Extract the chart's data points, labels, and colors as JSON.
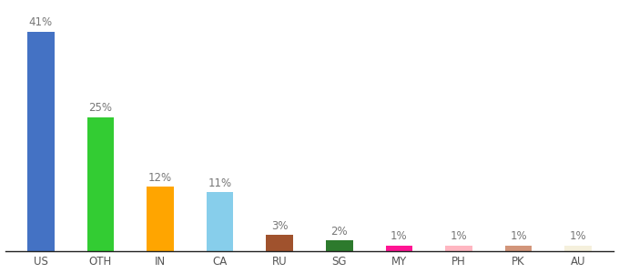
{
  "categories": [
    "US",
    "OTH",
    "IN",
    "CA",
    "RU",
    "SG",
    "MY",
    "PH",
    "PK",
    "AU"
  ],
  "values": [
    41,
    25,
    12,
    11,
    3,
    2,
    1,
    1,
    1,
    1
  ],
  "bar_colors": [
    "#4472C4",
    "#33CC33",
    "#FFA500",
    "#87CEEB",
    "#A0522D",
    "#2D7A2D",
    "#FF1493",
    "#FFB6C1",
    "#D2957A",
    "#F5F0DC"
  ],
  "labels": [
    "41%",
    "25%",
    "12%",
    "11%",
    "3%",
    "2%",
    "1%",
    "1%",
    "1%",
    "1%"
  ],
  "background_color": "#ffffff",
  "ylim": [
    0,
    46
  ],
  "label_fontsize": 8.5,
  "tick_fontsize": 8.5,
  "bar_width": 0.45,
  "figsize": [
    6.8,
    3.0
  ],
  "dpi": 100
}
